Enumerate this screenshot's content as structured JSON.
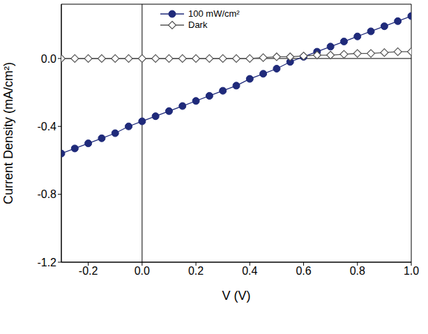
{
  "chart_data": {
    "type": "line",
    "xlabel": "V (V)",
    "ylabel": "Current Density (mA/cm²)",
    "x": [
      -0.3,
      -0.25,
      -0.2,
      -0.15,
      -0.1,
      -0.05,
      0.0,
      0.05,
      0.1,
      0.15,
      0.2,
      0.25,
      0.3,
      0.35,
      0.4,
      0.45,
      0.5,
      0.55,
      0.6,
      0.65,
      0.7,
      0.75,
      0.8,
      0.85,
      0.9,
      0.95,
      1.0
    ],
    "series": [
      {
        "name": "100 mW/cm²",
        "color": "#1f2a7a",
        "marker": "circle",
        "line_style": "solid",
        "values": [
          -0.56,
          -0.53,
          -0.5,
          -0.47,
          -0.44,
          -0.4,
          -0.37,
          -0.34,
          -0.31,
          -0.28,
          -0.25,
          -0.22,
          -0.19,
          -0.16,
          -0.12,
          -0.09,
          -0.06,
          -0.02,
          0.01,
          0.04,
          0.07,
          0.1,
          0.13,
          0.16,
          0.19,
          0.22,
          0.25
        ]
      },
      {
        "name": "Dark",
        "color": "#555555",
        "marker": "diamond",
        "line_style": "solid",
        "values": [
          0.0,
          0.0,
          0.0,
          0.0,
          0.0,
          0.0,
          0.0,
          0.0,
          0.0,
          0.0,
          0.0,
          0.0,
          0.0,
          0.0,
          0.0,
          0.005,
          0.01,
          0.01,
          0.015,
          0.02,
          0.02,
          0.025,
          0.03,
          0.03,
          0.035,
          0.04,
          0.04
        ]
      }
    ],
    "xlim": [
      -0.3,
      1.0
    ],
    "ylim": [
      -1.2,
      0.32
    ],
    "xticks": [
      -0.2,
      {
        "value": 0,
        "label": "0.0"
      },
      0.2,
      0.4,
      0.6,
      0.8,
      {
        "value": 1,
        "label": "1.0"
      }
    ],
    "yticks": [
      -1.2,
      -0.8,
      -0.4,
      {
        "value": 0,
        "label": "0.0"
      }
    ],
    "grid": false,
    "legend": "top"
  }
}
